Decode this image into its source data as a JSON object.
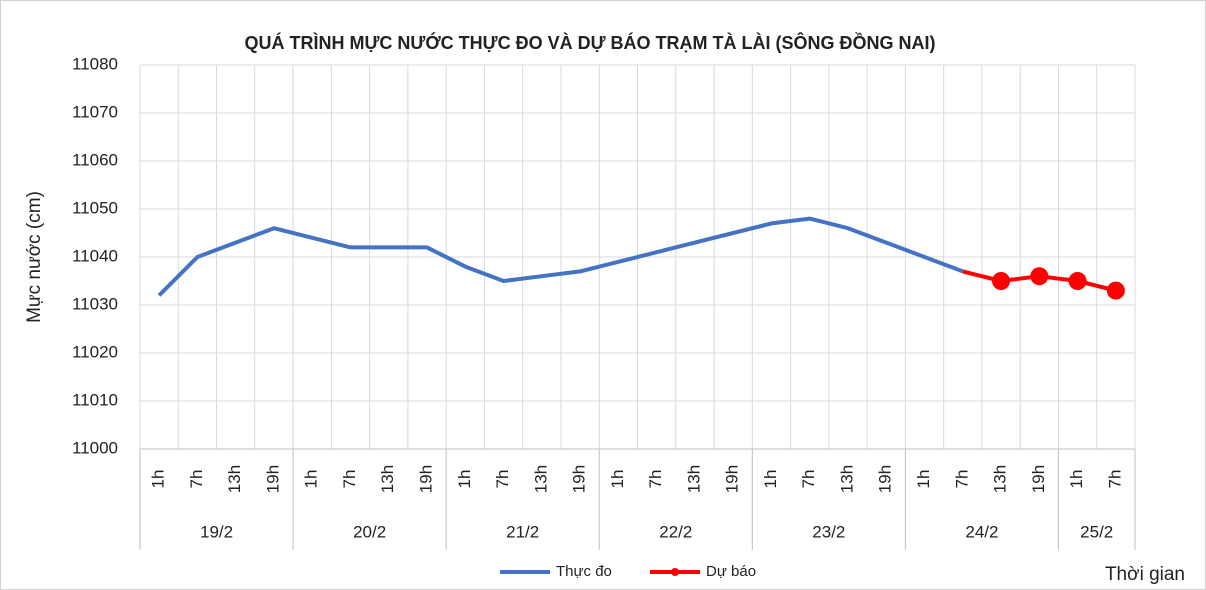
{
  "chart_data": {
    "type": "line",
    "title": "QUÁ TRÌNH MỰC NƯỚC THỰC ĐO VÀ DỰ BÁO TRẠM TÀ LÀI (SÔNG ĐỒNG NAI)",
    "y_label": "Mực nước (cm)",
    "x_label": "Thời gian",
    "groups": [
      {
        "name": "19/2",
        "categories": [
          "1h",
          "7h",
          "13h",
          "19h"
        ]
      },
      {
        "name": "20/2",
        "categories": [
          "1h",
          "7h",
          "13h",
          "19h"
        ]
      },
      {
        "name": "21/2",
        "categories": [
          "1h",
          "7h",
          "13h",
          "19h"
        ]
      },
      {
        "name": "22/2",
        "categories": [
          "1h",
          "7h",
          "13h",
          "19h"
        ]
      },
      {
        "name": "23/2",
        "categories": [
          "1h",
          "7h",
          "13h",
          "19h"
        ]
      },
      {
        "name": "24/2",
        "categories": [
          "1h",
          "7h",
          "13h",
          "19h"
        ]
      },
      {
        "name": "25/2",
        "categories": [
          "1h",
          "7h"
        ]
      }
    ],
    "series": [
      {
        "name": "Thực đo",
        "color": "#4472c4",
        "markers": false,
        "values": [
          11032,
          11040,
          11043,
          11046,
          11044,
          11042,
          11042,
          11042,
          11038,
          11035,
          11036,
          11037,
          11039,
          11041,
          11043,
          11045,
          11047,
          11048,
          11046,
          11043,
          11040,
          11037,
          null,
          null,
          null,
          null
        ]
      },
      {
        "name": "Dự báo",
        "color": "#ff0000",
        "markers": true,
        "values": [
          null,
          null,
          null,
          null,
          null,
          null,
          null,
          null,
          null,
          null,
          null,
          null,
          null,
          null,
          null,
          null,
          null,
          null,
          null,
          null,
          null,
          11037,
          11035,
          11036,
          11035,
          11033
        ]
      }
    ],
    "ylim": [
      11000,
      11080
    ],
    "yticks": [
      11000,
      11010,
      11020,
      11030,
      11040,
      11050,
      11060,
      11070,
      11080
    ],
    "grid": true,
    "legend": "bottom"
  }
}
